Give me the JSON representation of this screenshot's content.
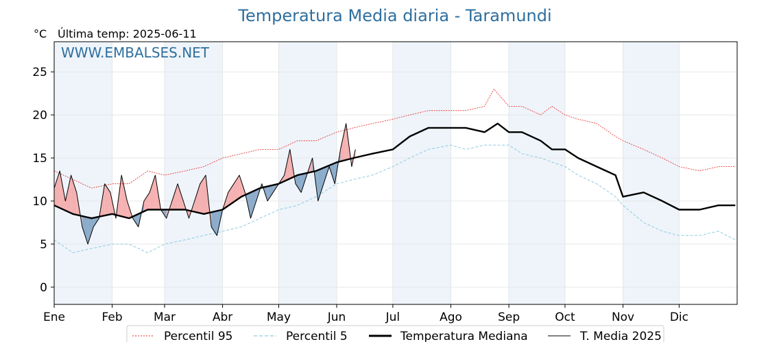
{
  "chart_data": {
    "type": "line",
    "title": "Temperatura Media diaria - Taramundi",
    "unit_label": "°C",
    "last_temp_label": "Última temp: 2025-06-11",
    "watermark": "WWW.EMBALSES.NET",
    "ylim": [
      -2,
      28.5
    ],
    "xlim": [
      0,
      365
    ],
    "yticks": [
      0,
      5,
      10,
      15,
      20,
      25
    ],
    "grid": true,
    "legend_position": "bottom-center",
    "months": [
      {
        "label": "Ene",
        "day": 0
      },
      {
        "label": "Feb",
        "day": 31
      },
      {
        "label": "Mar",
        "day": 59
      },
      {
        "label": "Abr",
        "day": 90
      },
      {
        "label": "May",
        "day": 120
      },
      {
        "label": "Jun",
        "day": 151
      },
      {
        "label": "Jul",
        "day": 181
      },
      {
        "label": "Ago",
        "day": 212
      },
      {
        "label": "Sep",
        "day": 243
      },
      {
        "label": "Oct",
        "day": 273
      },
      {
        "label": "Nov",
        "day": 304
      },
      {
        "label": "Dic",
        "day": 334
      }
    ],
    "shaded_month_bands": [
      [
        0,
        31
      ],
      [
        59,
        90
      ],
      [
        120,
        151
      ],
      [
        181,
        212
      ],
      [
        243,
        273
      ],
      [
        304,
        334
      ]
    ],
    "series": [
      {
        "name": "Percentil 95",
        "color": "#e8201e",
        "style": "dotted",
        "x": [
          0,
          10,
          20,
          31,
          40,
          50,
          59,
          70,
          80,
          90,
          100,
          110,
          120,
          130,
          140,
          151,
          160,
          170,
          181,
          190,
          200,
          212,
          220,
          230,
          235,
          243,
          250,
          260,
          266,
          273,
          280,
          290,
          300,
          304,
          315,
          325,
          334,
          345,
          355,
          364
        ],
        "y": [
          13.5,
          12.5,
          11.5,
          12,
          12,
          13.5,
          13,
          13.5,
          14,
          15,
          15.5,
          16,
          16,
          17,
          17,
          18,
          18.5,
          19,
          19.5,
          20,
          20.5,
          20.5,
          20.5,
          21,
          23,
          21,
          21,
          20,
          21,
          20,
          19.5,
          19,
          17.5,
          17,
          16,
          15,
          14,
          13.5,
          14,
          14
        ]
      },
      {
        "name": "Percentil 5",
        "color": "#8ecae0",
        "style": "dashed",
        "x": [
          0,
          10,
          20,
          31,
          40,
          50,
          59,
          70,
          80,
          90,
          100,
          110,
          120,
          130,
          140,
          151,
          160,
          170,
          181,
          190,
          200,
          212,
          220,
          230,
          243,
          250,
          260,
          273,
          280,
          290,
          300,
          304,
          315,
          325,
          334,
          345,
          355,
          364
        ],
        "y": [
          5.5,
          4,
          4.5,
          5,
          5,
          4,
          5,
          5.5,
          6,
          6.5,
          7,
          8,
          9,
          9.5,
          10.5,
          12,
          12.5,
          13,
          14,
          15,
          16,
          16.5,
          16,
          16.5,
          16.5,
          15.5,
          15,
          14,
          13,
          12,
          10.5,
          9.5,
          7.5,
          6.5,
          6,
          6,
          6.5,
          5.5
        ]
      },
      {
        "name": "Temperatura Mediana",
        "color": "#000000",
        "style": "solid-thick",
        "x": [
          0,
          10,
          20,
          31,
          40,
          50,
          59,
          70,
          80,
          90,
          100,
          110,
          120,
          130,
          140,
          151,
          160,
          170,
          181,
          190,
          200,
          212,
          220,
          230,
          237,
          243,
          250,
          260,
          266,
          273,
          280,
          290,
          300,
          304,
          315,
          325,
          334,
          345,
          355,
          364
        ],
        "y": [
          9.5,
          8.5,
          8,
          8.5,
          8,
          9,
          9,
          9,
          8.5,
          9,
          10.5,
          11.5,
          12,
          13,
          13.5,
          14.5,
          15,
          15.5,
          16,
          17.5,
          18.5,
          18.5,
          18.5,
          18,
          19,
          18,
          18,
          17,
          16,
          16,
          15,
          14,
          13,
          10.5,
          11,
          10,
          9,
          9,
          9.5,
          9.5
        ]
      },
      {
        "name": "T. Media 2025",
        "color": "#000000",
        "style": "solid-thin",
        "x": [
          0,
          3,
          6,
          9,
          12,
          15,
          18,
          21,
          24,
          27,
          30,
          33,
          36,
          39,
          42,
          45,
          48,
          51,
          54,
          57,
          60,
          63,
          66,
          69,
          72,
          75,
          78,
          81,
          84,
          87,
          90,
          93,
          96,
          99,
          102,
          105,
          108,
          111,
          114,
          117,
          120,
          123,
          126,
          129,
          132,
          135,
          138,
          141,
          144,
          147,
          150,
          153,
          156,
          159,
          161
        ],
        "y": [
          11.5,
          13.5,
          10,
          13,
          11,
          7,
          5,
          7,
          8,
          12,
          11,
          8,
          13,
          10,
          8,
          7,
          10,
          11,
          13,
          9,
          8,
          10,
          12,
          10,
          8,
          10,
          12,
          13,
          7,
          6,
          9,
          11,
          12,
          13,
          11,
          8,
          10,
          12,
          10,
          11,
          12,
          13,
          16,
          12,
          11,
          13,
          15,
          10,
          12,
          14,
          12,
          16,
          19,
          14,
          16
        ]
      }
    ]
  },
  "legend": [
    {
      "label": "Percentil 95"
    },
    {
      "label": "Percentil 5"
    },
    {
      "label": "Temperatura Mediana"
    },
    {
      "label": "T. Media 2025"
    }
  ]
}
